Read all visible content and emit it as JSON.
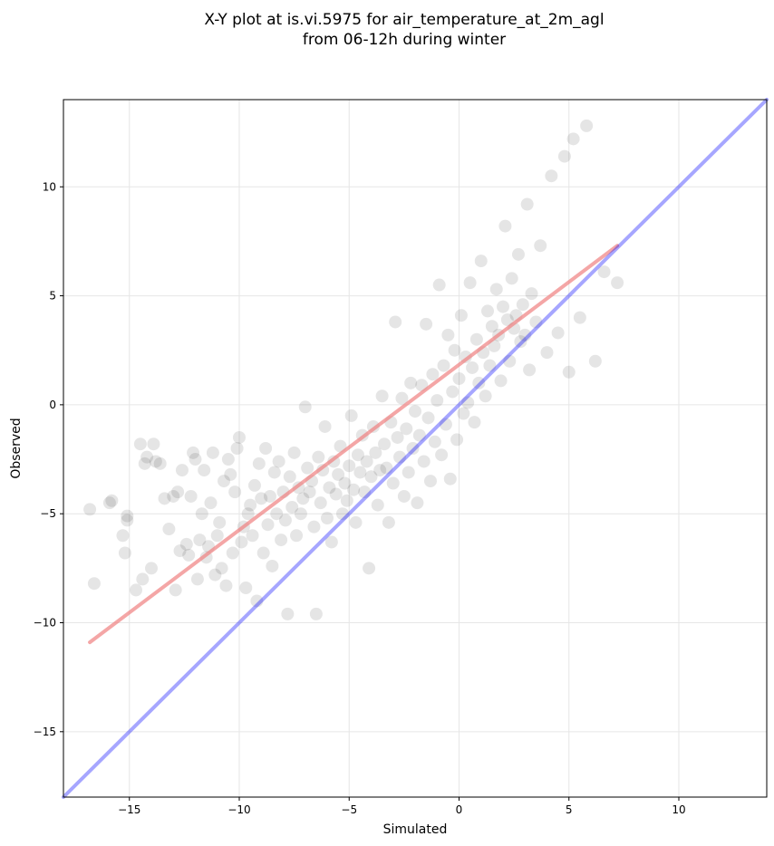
{
  "chart_data": {
    "type": "scatter",
    "title": [
      "X-Y plot at is.vi.5975 for air_temperature_at_2m_agl",
      "from 06-12h during winter"
    ],
    "xlabel": "Simulated",
    "ylabel": "Observed",
    "xlim": [
      -18,
      14
    ],
    "ylim": [
      -18,
      14
    ],
    "xticks": [
      -15,
      -10,
      -5,
      0,
      5,
      10
    ],
    "yticks": [
      -15,
      -10,
      -5,
      0,
      5,
      10
    ],
    "xtick_labels": [
      "−15",
      "−10",
      "−5",
      "0",
      "5",
      "10"
    ],
    "ytick_labels": [
      "−15",
      "−10",
      "−5",
      "0",
      "5",
      "10"
    ],
    "grid": true,
    "point_color": "#000000",
    "point_alpha": 0.1,
    "points": [
      [
        -16.8,
        -4.8
      ],
      [
        -16.6,
        -8.2
      ],
      [
        -15.9,
        -4.5
      ],
      [
        -15.8,
        -4.4
      ],
      [
        -15.3,
        -6.0
      ],
      [
        -15.2,
        -6.8
      ],
      [
        -15.1,
        -5.1
      ],
      [
        -15.1,
        -5.3
      ],
      [
        -14.7,
        -8.5
      ],
      [
        -14.5,
        -1.8
      ],
      [
        -14.4,
        -8.0
      ],
      [
        -14.3,
        -2.7
      ],
      [
        -14.2,
        -2.4
      ],
      [
        -14.0,
        -7.5
      ],
      [
        -13.9,
        -1.8
      ],
      [
        -13.8,
        -2.6
      ],
      [
        -13.6,
        -2.7
      ],
      [
        -13.4,
        -4.3
      ],
      [
        -13.2,
        -5.7
      ],
      [
        -13.0,
        -4.2
      ],
      [
        -12.9,
        -8.5
      ],
      [
        -12.8,
        -4.0
      ],
      [
        -12.7,
        -6.7
      ],
      [
        -12.6,
        -3.0
      ],
      [
        -12.4,
        -6.4
      ],
      [
        -12.3,
        -6.9
      ],
      [
        -12.2,
        -4.2
      ],
      [
        -12.1,
        -2.2
      ],
      [
        -12.0,
        -2.5
      ],
      [
        -11.9,
        -8.0
      ],
      [
        -11.8,
        -6.2
      ],
      [
        -11.7,
        -5.0
      ],
      [
        -11.6,
        -3.0
      ],
      [
        -11.5,
        -7.0
      ],
      [
        -11.4,
        -6.5
      ],
      [
        -11.3,
        -4.5
      ],
      [
        -11.2,
        -2.2
      ],
      [
        -11.1,
        -7.8
      ],
      [
        -11.0,
        -6.0
      ],
      [
        -10.9,
        -5.4
      ],
      [
        -10.8,
        -7.5
      ],
      [
        -10.7,
        -3.5
      ],
      [
        -10.6,
        -8.3
      ],
      [
        -10.5,
        -2.5
      ],
      [
        -10.4,
        -3.2
      ],
      [
        -10.3,
        -6.8
      ],
      [
        -10.2,
        -4.0
      ],
      [
        -10.1,
        -2.0
      ],
      [
        -10.0,
        -1.5
      ],
      [
        -9.9,
        -6.3
      ],
      [
        -9.8,
        -5.6
      ],
      [
        -9.7,
        -8.4
      ],
      [
        -9.6,
        -5.0
      ],
      [
        -9.5,
        -4.6
      ],
      [
        -9.4,
        -6.0
      ],
      [
        -9.3,
        -3.7
      ],
      [
        -9.2,
        -9.0
      ],
      [
        -9.1,
        -2.7
      ],
      [
        -9.0,
        -4.3
      ],
      [
        -8.9,
        -6.8
      ],
      [
        -8.8,
        -2.0
      ],
      [
        -8.7,
        -5.5
      ],
      [
        -8.6,
        -4.2
      ],
      [
        -8.5,
        -7.4
      ],
      [
        -8.4,
        -3.1
      ],
      [
        -8.3,
        -5.0
      ],
      [
        -8.2,
        -2.6
      ],
      [
        -8.1,
        -6.2
      ],
      [
        -8.0,
        -4.0
      ],
      [
        -7.9,
        -5.3
      ],
      [
        -7.8,
        -9.6
      ],
      [
        -7.7,
        -3.3
      ],
      [
        -7.6,
        -4.7
      ],
      [
        -7.5,
        -2.2
      ],
      [
        -7.4,
        -6.0
      ],
      [
        -7.3,
        -3.8
      ],
      [
        -7.2,
        -5.0
      ],
      [
        -7.1,
        -4.3
      ],
      [
        -7.0,
        -0.1
      ],
      [
        -6.9,
        -2.9
      ],
      [
        -6.8,
        -4.0
      ],
      [
        -6.7,
        -3.5
      ],
      [
        -6.6,
        -5.6
      ],
      [
        -6.5,
        -9.6
      ],
      [
        -6.4,
        -2.4
      ],
      [
        -6.3,
        -4.5
      ],
      [
        -6.2,
        -3.0
      ],
      [
        -6.1,
        -1.0
      ],
      [
        -6.0,
        -5.2
      ],
      [
        -5.9,
        -3.8
      ],
      [
        -5.8,
        -6.3
      ],
      [
        -5.7,
        -2.6
      ],
      [
        -5.6,
        -4.1
      ],
      [
        -5.5,
        -3.2
      ],
      [
        -5.4,
        -1.9
      ],
      [
        -5.3,
        -5.0
      ],
      [
        -5.2,
        -3.6
      ],
      [
        -5.1,
        -4.4
      ],
      [
        -5.0,
        -2.8
      ],
      [
        -4.9,
        -0.5
      ],
      [
        -4.8,
        -3.9
      ],
      [
        -4.7,
        -5.4
      ],
      [
        -4.6,
        -2.3
      ],
      [
        -4.5,
        -3.1
      ],
      [
        -4.4,
        -1.4
      ],
      [
        -4.3,
        -4.0
      ],
      [
        -4.2,
        -2.6
      ],
      [
        -4.1,
        -7.5
      ],
      [
        -4.0,
        -3.3
      ],
      [
        -3.9,
        -1.0
      ],
      [
        -3.8,
        -2.2
      ],
      [
        -3.7,
        -4.6
      ],
      [
        -3.6,
        -3.0
      ],
      [
        -3.5,
        0.4
      ],
      [
        -3.4,
        -1.8
      ],
      [
        -3.3,
        -2.9
      ],
      [
        -3.2,
        -5.4
      ],
      [
        -3.1,
        -0.8
      ],
      [
        -3.0,
        -3.6
      ],
      [
        -2.9,
        3.8
      ],
      [
        -2.8,
        -1.5
      ],
      [
        -2.7,
        -2.4
      ],
      [
        -2.6,
        0.3
      ],
      [
        -2.5,
        -4.2
      ],
      [
        -2.4,
        -1.1
      ],
      [
        -2.3,
        -3.1
      ],
      [
        -2.2,
        1.0
      ],
      [
        -2.1,
        -2.0
      ],
      [
        -2.0,
        -0.3
      ],
      [
        -1.9,
        -4.5
      ],
      [
        -1.8,
        -1.4
      ],
      [
        -1.7,
        0.9
      ],
      [
        -1.6,
        -2.6
      ],
      [
        -1.5,
        3.7
      ],
      [
        -1.4,
        -0.6
      ],
      [
        -1.3,
        -3.5
      ],
      [
        -1.2,
        1.4
      ],
      [
        -1.1,
        -1.7
      ],
      [
        -1.0,
        0.2
      ],
      [
        -0.9,
        5.5
      ],
      [
        -0.8,
        -2.3
      ],
      [
        -0.7,
        1.8
      ],
      [
        -0.6,
        -0.9
      ],
      [
        -0.5,
        3.2
      ],
      [
        -0.4,
        -3.4
      ],
      [
        -0.3,
        0.6
      ],
      [
        -0.2,
        2.5
      ],
      [
        -0.1,
        -1.6
      ],
      [
        0.0,
        1.2
      ],
      [
        0.1,
        4.1
      ],
      [
        0.2,
        -0.4
      ],
      [
        0.3,
        2.2
      ],
      [
        0.4,
        0.1
      ],
      [
        0.5,
        5.6
      ],
      [
        0.6,
        1.7
      ],
      [
        0.7,
        -0.8
      ],
      [
        0.8,
        3.0
      ],
      [
        0.9,
        1.0
      ],
      [
        1.0,
        6.6
      ],
      [
        1.1,
        2.4
      ],
      [
        1.2,
        0.4
      ],
      [
        1.3,
        4.3
      ],
      [
        1.4,
        1.8
      ],
      [
        1.5,
        3.6
      ],
      [
        1.6,
        2.7
      ],
      [
        1.7,
        5.3
      ],
      [
        1.8,
        3.2
      ],
      [
        1.9,
        1.1
      ],
      [
        2.0,
        4.5
      ],
      [
        2.1,
        8.2
      ],
      [
        2.2,
        3.9
      ],
      [
        2.3,
        2.0
      ],
      [
        2.4,
        5.8
      ],
      [
        2.5,
        3.5
      ],
      [
        2.6,
        4.1
      ],
      [
        2.7,
        6.9
      ],
      [
        2.8,
        2.9
      ],
      [
        2.9,
        4.6
      ],
      [
        3.0,
        3.2
      ],
      [
        3.1,
        9.2
      ],
      [
        3.2,
        1.6
      ],
      [
        3.3,
        5.1
      ],
      [
        3.5,
        3.8
      ],
      [
        3.7,
        7.3
      ],
      [
        4.0,
        2.4
      ],
      [
        4.2,
        10.5
      ],
      [
        4.5,
        3.3
      ],
      [
        4.8,
        11.4
      ],
      [
        5.0,
        1.5
      ],
      [
        5.2,
        12.2
      ],
      [
        5.5,
        4.0
      ],
      [
        5.8,
        12.8
      ],
      [
        6.2,
        2.0
      ],
      [
        6.6,
        6.1
      ],
      [
        7.2,
        5.6
      ]
    ],
    "series": [
      {
        "values": [
          [
            -16.8,
            -10.9
          ],
          [
            7.2,
            7.3
          ]
        ],
        "color": "#f08080",
        "alpha": 0.7
      },
      {
        "values": [
          [
            -18,
            -18
          ],
          [
            14,
            14
          ]
        ],
        "color": "#0000ff",
        "alpha": 0.35
      }
    ]
  }
}
